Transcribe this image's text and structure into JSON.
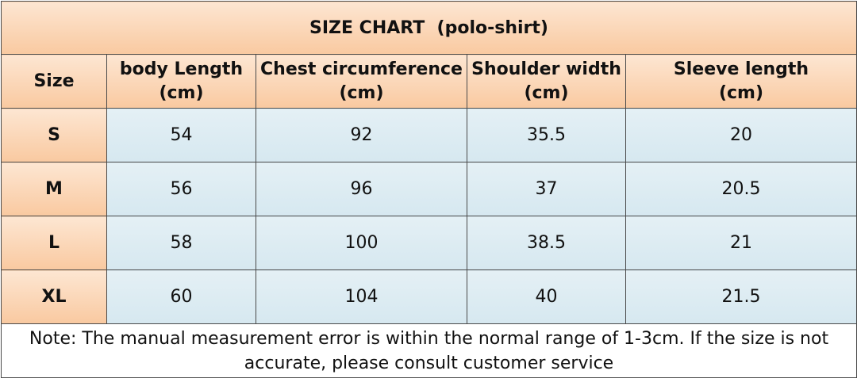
{
  "title": "SIZE CHART  (polo-shirt)",
  "table": {
    "header": [
      {
        "name": "Size"
      },
      {
        "name": "body Length",
        "unit": "(cm)"
      },
      {
        "name": "Chest circumference",
        "unit": "(cm)"
      },
      {
        "name": "Shoulder width",
        "unit": "(cm)"
      },
      {
        "name": "Sleeve length",
        "unit": "(cm)"
      }
    ],
    "rows": [
      [
        "S",
        54,
        92,
        35.5,
        20
      ],
      [
        "M",
        56,
        96,
        37,
        20.5
      ],
      [
        "L",
        58,
        100,
        38.5,
        21
      ],
      [
        "XL",
        60,
        104,
        40,
        21.5
      ]
    ]
  },
  "note": "Note: The manual measurement error is within the normal range of 1-3cm. If the size is not accurate, please consult customer service"
}
